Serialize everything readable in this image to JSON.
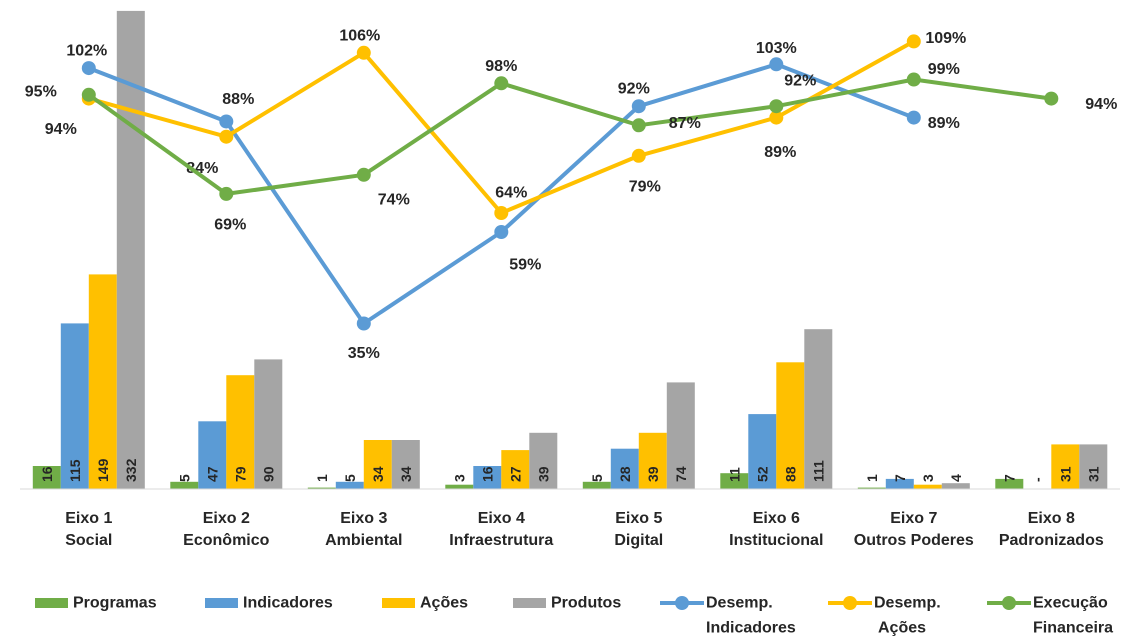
{
  "chart_data": {
    "type": "bar",
    "title": "",
    "xlabel": "",
    "ylabel": "",
    "grid": false,
    "legend_position": "bottom",
    "categories": [
      [
        "Eixo 1",
        "Social"
      ],
      [
        "Eixo 2",
        "Econômico"
      ],
      [
        "Eixo 3",
        "Ambiental"
      ],
      [
        "Eixo 4",
        "Infraestrutura"
      ],
      [
        "Eixo 5",
        "Digital"
      ],
      [
        "Eixo 6",
        "Institucional"
      ],
      [
        "Eixo 7",
        "Outros Poderes"
      ],
      [
        "Eixo 8",
        "Padronizados"
      ]
    ],
    "bar_series": [
      {
        "name": "Programas",
        "color": "#70AD47",
        "values": [
          16,
          5,
          1,
          3,
          5,
          11,
          1,
          7
        ],
        "labels": [
          "16",
          "5",
          "1",
          "3",
          "5",
          "11",
          "1",
          "7"
        ]
      },
      {
        "name": "Indicadores",
        "color": "#5B9BD5",
        "values": [
          115,
          47,
          5,
          16,
          28,
          52,
          7,
          0
        ],
        "labels": [
          "115",
          "47",
          "5",
          "16",
          "28",
          "52",
          "7",
          "-"
        ]
      },
      {
        "name": "Ações",
        "color": "#FFC000",
        "values": [
          149,
          79,
          34,
          27,
          39,
          88,
          3,
          31
        ],
        "labels": [
          "149",
          "79",
          "34",
          "27",
          "39",
          "88",
          "3",
          "31"
        ]
      },
      {
        "name": "Produtos",
        "color": "#A5A5A5",
        "values": [
          332,
          90,
          34,
          39,
          74,
          111,
          4,
          31
        ],
        "labels": [
          "332",
          "90",
          "34",
          "39",
          "74",
          "111",
          "4",
          "31"
        ]
      }
    ],
    "line_series": [
      {
        "name": [
          "Desemp.",
          "Indicadores"
        ],
        "color": "#5B9BD5",
        "values": [
          102,
          88,
          35,
          59,
          92,
          103,
          89,
          null
        ],
        "labels": [
          "102%",
          "88%",
          "35%",
          "59%",
          "92%",
          "103%",
          "89%",
          ""
        ]
      },
      {
        "name": [
          "Desemp.",
          "Ações"
        ],
        "color": "#FFC000",
        "values": [
          94,
          84,
          106,
          64,
          79,
          89,
          109,
          null
        ],
        "labels": [
          "94%",
          "84%",
          "106%",
          "64%",
          "79%",
          "89%",
          "109%",
          ""
        ]
      },
      {
        "name": [
          "Execução",
          "Financeira"
        ],
        "color": "#70AD47",
        "values": [
          95,
          69,
          74,
          98,
          87,
          92,
          99,
          94
        ],
        "labels": [
          "95%",
          "69%",
          "74%",
          "98%",
          "87%",
          "92%",
          "99%",
          "94%"
        ]
      }
    ]
  }
}
